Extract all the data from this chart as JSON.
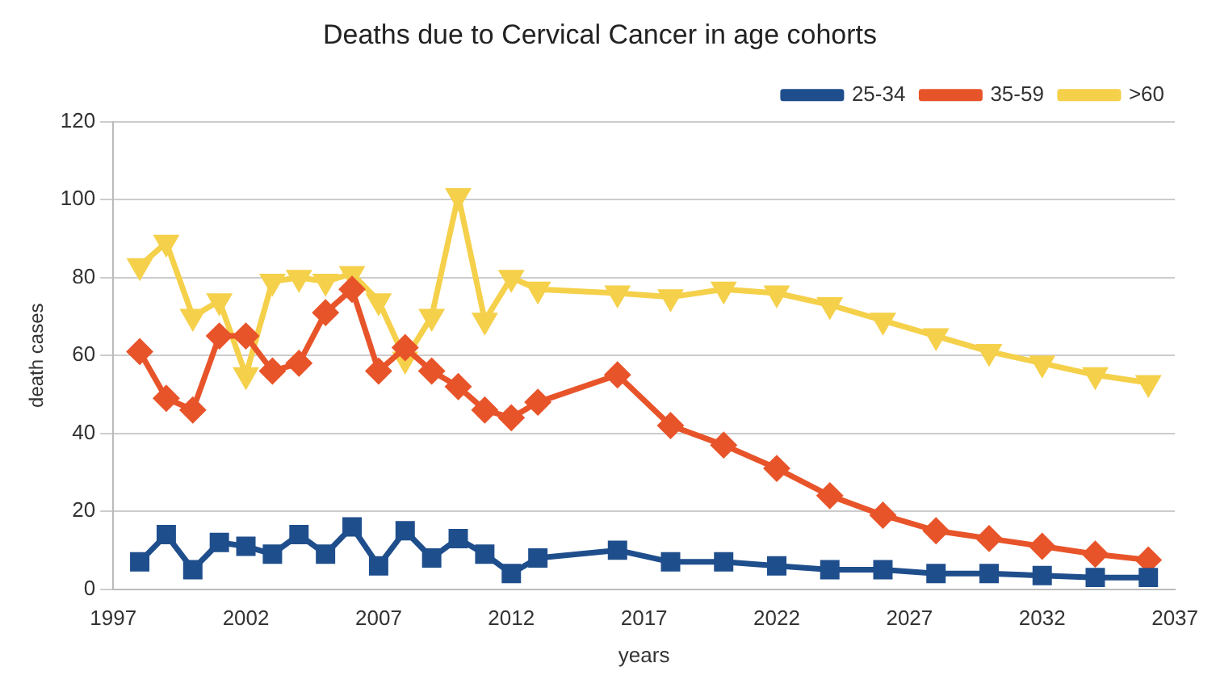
{
  "chart_data": {
    "type": "line",
    "title": "Deaths due to Cervical Cancer in age cohorts",
    "xlabel": "years",
    "ylabel": "death cases",
    "x": [
      1998,
      1999,
      2000,
      2001,
      2002,
      2003,
      2004,
      2005,
      2006,
      2007,
      2008,
      2009,
      2010,
      2011,
      2012,
      2013,
      2016,
      2018,
      2020,
      2022,
      2024,
      2026,
      2028,
      2030,
      2032,
      2034,
      2036
    ],
    "series": [
      {
        "name": "25-34",
        "color": "#1f4e8c",
        "marker": "square",
        "values": [
          7,
          14,
          5,
          12,
          11,
          9,
          14,
          9,
          16,
          6,
          15,
          8,
          13,
          9,
          4,
          8,
          10,
          7,
          7,
          6,
          5,
          5,
          4,
          4,
          3.5,
          3,
          3
        ]
      },
      {
        "name": "35-59",
        "color": "#e8542a",
        "marker": "diamond",
        "values": [
          61,
          49,
          46,
          65,
          65,
          56,
          58,
          71,
          77,
          56,
          62,
          56,
          52,
          46,
          44,
          48,
          55,
          42,
          37,
          31,
          24,
          19,
          15,
          13,
          11,
          9,
          7.5
        ]
      },
      {
        "name": ">60",
        "color": "#f5d04a",
        "marker": "triangle",
        "values": [
          83,
          89,
          70,
          74,
          55,
          79,
          80,
          79,
          81,
          74,
          59,
          70,
          101,
          69,
          80,
          77,
          76,
          75,
          77,
          76,
          73,
          69,
          65,
          61,
          58,
          55,
          53
        ]
      }
    ],
    "xlim": [
      1997,
      2037
    ],
    "xticks": [
      1997,
      2002,
      2007,
      2012,
      2017,
      2022,
      2027,
      2032,
      2037
    ],
    "ylim": [
      0,
      120
    ],
    "yticks": [
      0,
      20,
      40,
      60,
      80,
      100,
      120
    ],
    "grid": "y",
    "legend": "top right",
    "line_style": "solid"
  }
}
